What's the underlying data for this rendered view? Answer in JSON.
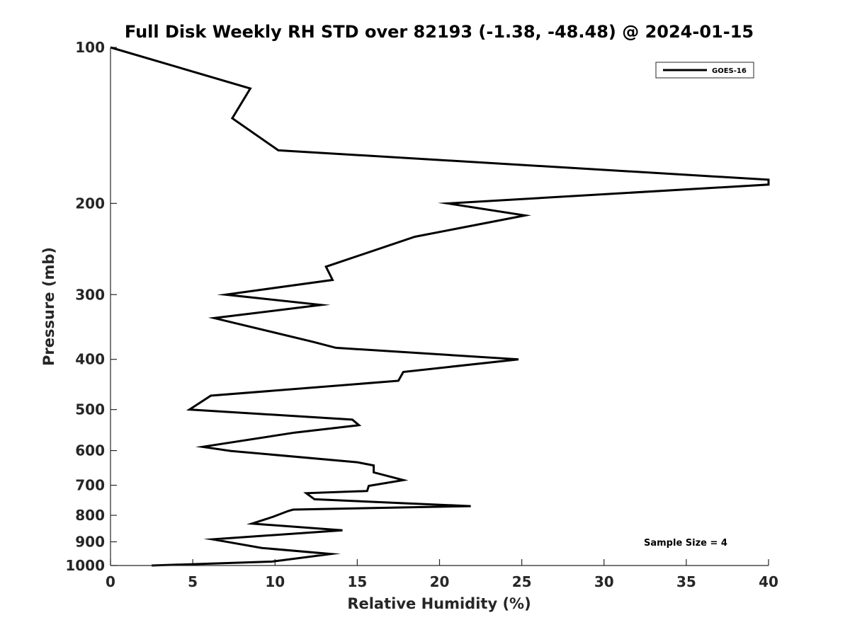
{
  "chart_data": {
    "type": "line",
    "title": "Full Disk Weekly RH STD over 82193 (-1.38, -48.48) @ 2024-01-15",
    "xlabel": "Relative Humidity (%)",
    "ylabel": "Pressure (mb)",
    "xlim": [
      0,
      40
    ],
    "ylim": [
      100,
      1000
    ],
    "yscale": "log",
    "yreversed": true,
    "xticks": [
      "0",
      "5",
      "10",
      "15",
      "20",
      "25",
      "30",
      "35",
      "40"
    ],
    "yticks": [
      "100",
      "200",
      "300",
      "400",
      "500",
      "600",
      "700",
      "800",
      "900",
      "1000"
    ],
    "legend_position": "top-right",
    "annotation": "Sample Size = 4",
    "series": [
      {
        "name": "GOES-16",
        "color": "#000000",
        "x": [
          0.0,
          8.5,
          7.4,
          10.2,
          40.0,
          40.0,
          20.5,
          25.2,
          18.5,
          13.1,
          13.5,
          7.0,
          12.8,
          6.3,
          12.3,
          13.7,
          24.8,
          17.8,
          17.5,
          6.1,
          4.8,
          14.7,
          15.1,
          11.2,
          5.6,
          7.3,
          15.0,
          16.0,
          16.0,
          17.8,
          15.7,
          15.6,
          11.9,
          12.4,
          21.9,
          11.1,
          10.8,
          9.9,
          8.6,
          14.1,
          6.2,
          6.9,
          9.2,
          13.4,
          9.8,
          2.5
        ],
        "y": [
          100,
          120,
          137,
          158,
          180,
          184,
          200,
          211,
          232,
          265,
          281,
          300,
          314,
          333,
          370,
          380,
          400,
          423,
          440,
          470,
          500,
          523,
          536,
          554,
          590,
          601,
          632,
          641,
          661,
          684,
          702,
          718,
          725,
          745,
          768,
          780,
          785,
          805,
          830,
          855,
          890,
          898,
          925,
          950,
          983,
          1000
        ]
      }
    ]
  }
}
